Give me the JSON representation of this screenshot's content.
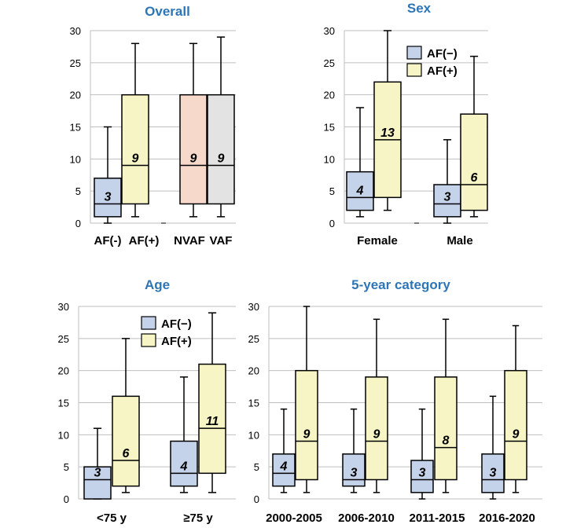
{
  "colors": {
    "af_neg": "#C5D3EA",
    "af_pos": "#F7F5C5",
    "nvaf": "#F7D9CB",
    "vaf": "#E3E3E3",
    "title": "#2E75B6",
    "grid": "#BFBFBF"
  },
  "chart_data": [
    {
      "type": "box",
      "title": "Overall",
      "ylim": [
        0,
        30
      ],
      "yticks": [
        0,
        5,
        10,
        15,
        20,
        25,
        30
      ],
      "grid": true,
      "legend": null,
      "categories": [
        "AF(-)",
        "AF(+)",
        "NVAF",
        "VAF"
      ],
      "boxes": [
        {
          "name": "AF(-)",
          "min": 0,
          "q1": 1,
          "median": 3,
          "q3": 7,
          "max": 15,
          "label": "3",
          "color": "af_neg"
        },
        {
          "name": "AF(+)",
          "min": 1,
          "q1": 3,
          "median": 9,
          "q3": 20,
          "max": 28,
          "label": "9",
          "color": "af_pos"
        },
        {
          "name": "NVAF",
          "min": 1,
          "q1": 3,
          "median": 9,
          "q3": 20,
          "max": 28,
          "label": "9",
          "color": "nvaf"
        },
        {
          "name": "VAF",
          "min": 1,
          "q1": 3,
          "median": 9,
          "q3": 20,
          "max": 29,
          "label": "9",
          "color": "vaf"
        }
      ]
    },
    {
      "type": "box",
      "title": "Sex",
      "ylim": [
        0,
        30
      ],
      "yticks": [
        0,
        5,
        10,
        15,
        20,
        25,
        30
      ],
      "grid": true,
      "legend": {
        "position": "top-center",
        "entries": [
          "AF(−)",
          "AF(+)"
        ]
      },
      "categories": [
        "Female",
        "Male"
      ],
      "boxes": [
        {
          "group": "Female",
          "series": "AF(−)",
          "min": 1,
          "q1": 2,
          "median": 4,
          "q3": 8,
          "max": 18,
          "label": "4",
          "color": "af_neg"
        },
        {
          "group": "Female",
          "series": "AF(+)",
          "min": 2,
          "q1": 4,
          "median": 13,
          "q3": 22,
          "max": 30,
          "label": "13",
          "color": "af_pos"
        },
        {
          "group": "Male",
          "series": "AF(−)",
          "min": 0,
          "q1": 1,
          "median": 3,
          "q3": 6,
          "max": 13,
          "label": "3",
          "color": "af_neg"
        },
        {
          "group": "Male",
          "series": "AF(+)",
          "min": 1,
          "q1": 2,
          "median": 6,
          "q3": 17,
          "max": 26,
          "label": "6",
          "color": "af_pos"
        }
      ]
    },
    {
      "type": "box",
      "title": "Age",
      "ylim": [
        0,
        30
      ],
      "yticks": [
        0,
        5,
        10,
        15,
        20,
        25,
        30
      ],
      "grid": true,
      "legend": {
        "position": "top-right",
        "entries": [
          "AF(−)",
          "AF(+)"
        ]
      },
      "categories": [
        "<75 y",
        "≥75 y"
      ],
      "boxes": [
        {
          "group": "<75 y",
          "series": "AF(−)",
          "min": 0,
          "q1": 0,
          "median": 3,
          "q3": 5,
          "max": 11,
          "label": "3",
          "color": "af_neg"
        },
        {
          "group": "<75 y",
          "series": "AF(+)",
          "min": 1,
          "q1": 2,
          "median": 6,
          "q3": 16,
          "max": 25,
          "label": "6",
          "color": "af_pos"
        },
        {
          "group": "≥75 y",
          "series": "AF(−)",
          "min": 1,
          "q1": 2,
          "median": 4,
          "q3": 9,
          "max": 19,
          "label": "4",
          "color": "af_neg"
        },
        {
          "group": "≥75 y",
          "series": "AF(+)",
          "min": 1,
          "q1": 4,
          "median": 11,
          "q3": 21,
          "max": 29,
          "label": "11",
          "color": "af_pos"
        }
      ]
    },
    {
      "type": "box",
      "title": "5-year category",
      "ylim": [
        0,
        30
      ],
      "yticks": [
        0,
        5,
        10,
        15,
        20,
        25,
        30
      ],
      "grid": true,
      "legend": null,
      "categories": [
        "2000-2005",
        "2006-2010",
        "2011-2015",
        "2016-2020"
      ],
      "boxes": [
        {
          "group": "2000-2005",
          "series": "AF(−)",
          "min": 1,
          "q1": 2,
          "median": 4,
          "q3": 7,
          "max": 14,
          "label": "4",
          "color": "af_neg"
        },
        {
          "group": "2000-2005",
          "series": "AF(+)",
          "min": 1,
          "q1": 3,
          "median": 9,
          "q3": 20,
          "max": 30,
          "label": "9",
          "color": "af_pos"
        },
        {
          "group": "2006-2010",
          "series": "AF(−)",
          "min": 1,
          "q1": 2,
          "median": 3,
          "q3": 7,
          "max": 14,
          "label": "3",
          "color": "af_neg"
        },
        {
          "group": "2006-2010",
          "series": "AF(+)",
          "min": 1,
          "q1": 3,
          "median": 9,
          "q3": 19,
          "max": 28,
          "label": "9",
          "color": "af_pos"
        },
        {
          "group": "2011-2015",
          "series": "AF(−)",
          "min": 0,
          "q1": 1,
          "median": 3,
          "q3": 6,
          "max": 14,
          "label": "3",
          "color": "af_neg"
        },
        {
          "group": "2011-2015",
          "series": "AF(+)",
          "min": 1,
          "q1": 3,
          "median": 8,
          "q3": 19,
          "max": 28,
          "label": "8",
          "color": "af_pos"
        },
        {
          "group": "2016-2020",
          "series": "AF(−)",
          "min": 0,
          "q1": 1,
          "median": 3,
          "q3": 7,
          "max": 16,
          "label": "3",
          "color": "af_neg"
        },
        {
          "group": "2016-2020",
          "series": "AF(+)",
          "min": 1,
          "q1": 3,
          "median": 9,
          "q3": 20,
          "max": 27,
          "label": "9",
          "color": "af_pos"
        }
      ]
    }
  ]
}
